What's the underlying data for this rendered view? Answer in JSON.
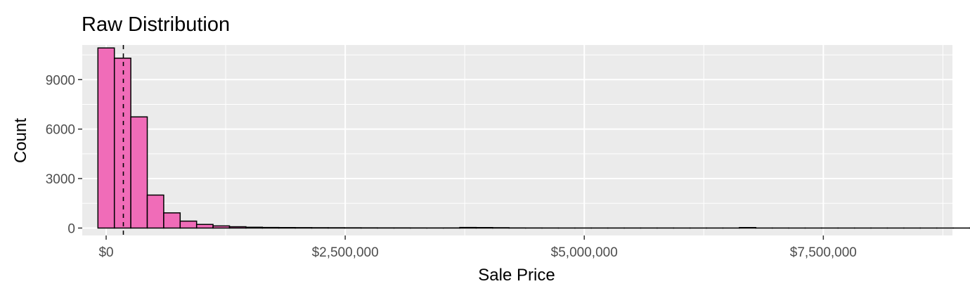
{
  "chart_data": {
    "type": "bar",
    "title": "Raw Distribution",
    "xlabel": "Sale Price",
    "ylabel": "Count",
    "xlim": [
      -250000,
      8850000
    ],
    "ylim": [
      -450,
      11100
    ],
    "x_ticks": [
      {
        "value": 0,
        "label": "$0"
      },
      {
        "value": 2500000,
        "label": "$2,500,000"
      },
      {
        "value": 5000000,
        "label": "$5,000,000"
      },
      {
        "value": 7500000,
        "label": "$7,500,000"
      }
    ],
    "y_ticks": [
      {
        "value": 0,
        "label": "0"
      },
      {
        "value": 3000,
        "label": "3000"
      },
      {
        "value": 6000,
        "label": "6000"
      },
      {
        "value": 9000,
        "label": "9000"
      }
    ],
    "bin_width": 172000,
    "bin_start": -86000,
    "counts": [
      10920,
      10300,
      6740,
      2000,
      920,
      420,
      220,
      130,
      80,
      50,
      35,
      30,
      25,
      20,
      18,
      15,
      12,
      10,
      10,
      8,
      7,
      8,
      35,
      30,
      20,
      8,
      6,
      5,
      4,
      4,
      4,
      4,
      4,
      4,
      4,
      3,
      3,
      3,
      3,
      30,
      3,
      3,
      2,
      2,
      2,
      2,
      2,
      2,
      2,
      2,
      2,
      2,
      2,
      2,
      2,
      2,
      2,
      2,
      2,
      2,
      2,
      2,
      2,
      2,
      2
    ],
    "vline": {
      "value": 180000,
      "style": "dashed"
    },
    "grid": true,
    "colors": {
      "bar_fill": "#f06cb8",
      "bar_stroke": "#000000",
      "panel_bg": "#ebebeb",
      "grid_major": "#ffffff"
    }
  }
}
